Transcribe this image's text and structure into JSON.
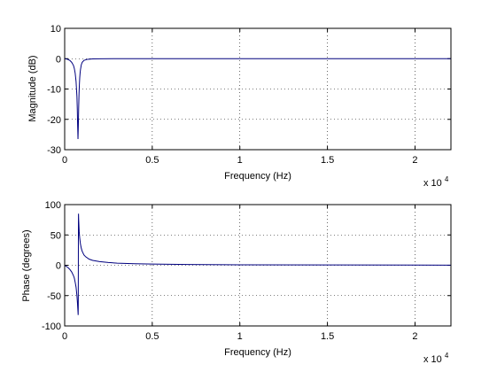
{
  "chart_data": [
    {
      "type": "line",
      "title": "",
      "xlabel": "Frequency (Hz)",
      "ylabel": "Magnitude (dB)",
      "x_multiplier_label": "x 10",
      "x_multiplier_exponent": "4",
      "xlim": [
        0,
        22050
      ],
      "ylim": [
        -30,
        10
      ],
      "xticks": [
        0,
        5000,
        10000,
        15000,
        20000
      ],
      "xtick_labels": [
        "0",
        "0.5",
        "1",
        "1.5",
        "2"
      ],
      "yticks": [
        -30,
        -20,
        -10,
        0,
        10
      ],
      "ytick_labels": [
        "-30",
        "-20",
        "-10",
        "0",
        "10"
      ],
      "grid": true,
      "line_color": "#00007f",
      "series": [
        {
          "x": [
            0,
            100,
            200,
            300,
            400,
            500,
            550,
            600,
            650,
            700,
            720,
            740,
            760,
            780,
            800,
            820,
            840,
            860,
            880,
            900,
            950,
            1000,
            1100,
            1300,
            1600,
            2000,
            3000,
            5000,
            10000,
            15000,
            20000,
            22050
          ],
          "values": [
            0,
            -0.1,
            -0.3,
            -0.6,
            -1.2,
            -2.2,
            -3.2,
            -4.8,
            -7.5,
            -12.5,
            -16.5,
            -22,
            -26.5,
            -22,
            -16,
            -11.5,
            -8.5,
            -6.3,
            -4.8,
            -3.7,
            -2.0,
            -1.2,
            -0.55,
            -0.2,
            -0.08,
            -0.03,
            0,
            0,
            0,
            0,
            0,
            0
          ]
        }
      ]
    },
    {
      "type": "line",
      "title": "",
      "xlabel": "Frequency (Hz)",
      "ylabel": "Phase (degrees)",
      "x_multiplier_label": "x 10",
      "x_multiplier_exponent": "4",
      "xlim": [
        0,
        22050
      ],
      "ylim": [
        -100,
        100
      ],
      "xticks": [
        0,
        5000,
        10000,
        15000,
        20000
      ],
      "xtick_labels": [
        "0",
        "0.5",
        "1",
        "1.5",
        "2"
      ],
      "yticks": [
        -100,
        -50,
        0,
        50,
        100
      ],
      "ytick_labels": [
        "-100",
        "-50",
        "0",
        "50",
        "100"
      ],
      "grid": true,
      "line_color": "#00007f",
      "series": [
        {
          "x": [
            0,
            100,
            200,
            300,
            400,
            500,
            550,
            600,
            650,
            700,
            730,
            750,
            770,
            775,
            780,
            785,
            790,
            800,
            830,
            860,
            900,
            950,
            1000,
            1100,
            1200,
            1400,
            1600,
            2000,
            2500,
            3000,
            4000,
            5000,
            7000,
            10000,
            15000,
            20000,
            22050
          ],
          "values": [
            0,
            -2,
            -4,
            -7,
            -11,
            -17,
            -21,
            -28,
            -36,
            -50,
            -62,
            -72,
            -82,
            -70,
            0,
            70,
            85,
            75,
            55,
            45,
            35,
            28,
            23,
            17,
            14,
            10,
            8,
            6,
            4.5,
            3.5,
            2.5,
            2,
            1.2,
            0.8,
            0.5,
            0.3,
            0.2
          ]
        }
      ]
    }
  ]
}
